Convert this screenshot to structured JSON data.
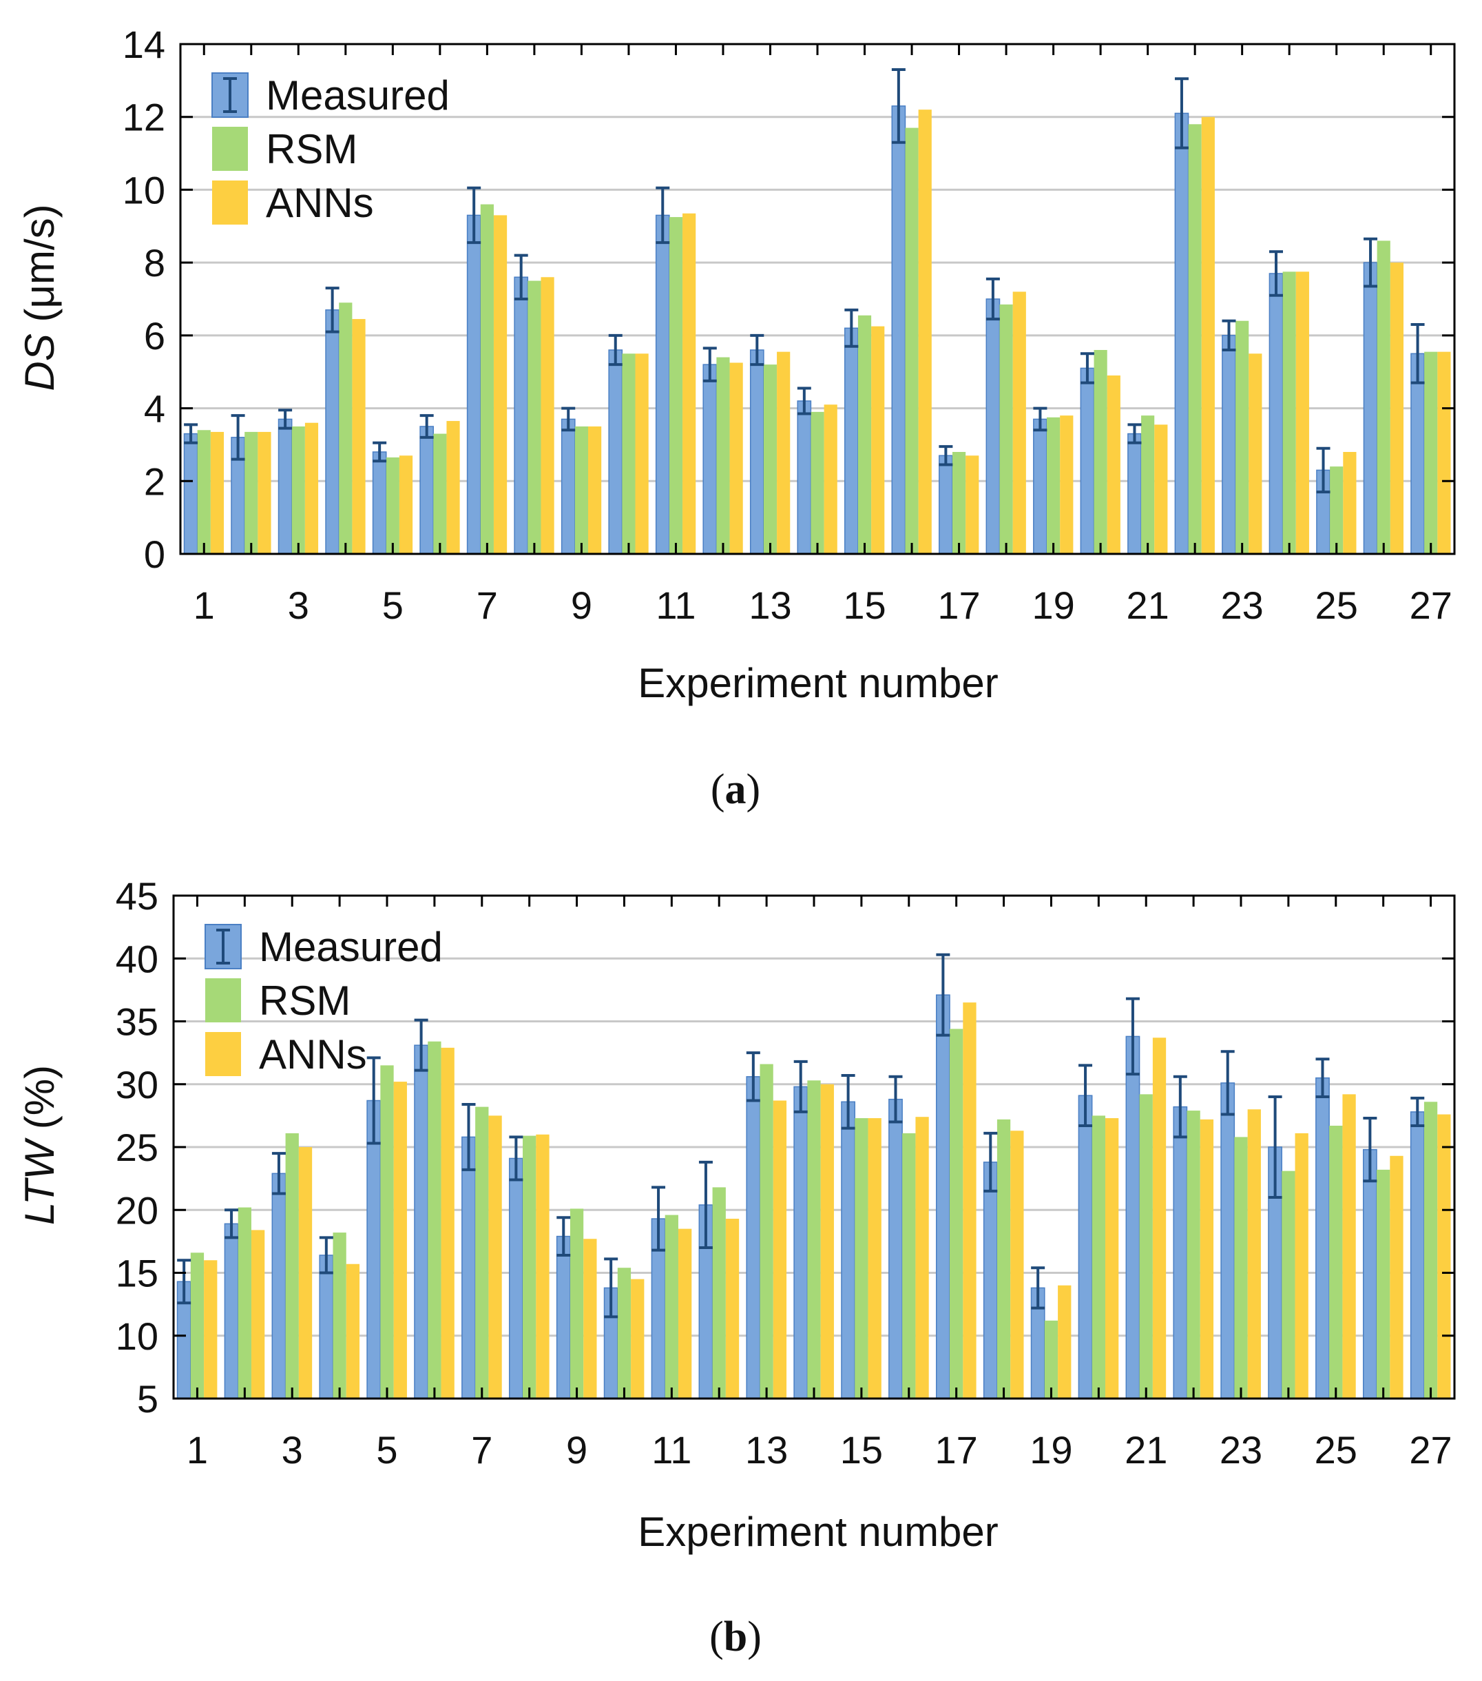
{
  "colors": {
    "measured_fill": "#7aa6dc",
    "measured_edge": "#4a7fc4",
    "rsm_fill": "#a6d977",
    "ann_fill": "#fdcf41",
    "error_bar": "#1f4a7a",
    "grid": "#c8c8c8",
    "axis": "#000000"
  },
  "chart_data": [
    {
      "type": "bar",
      "panel_label": "a",
      "title": "",
      "xlabel": "Experiment number",
      "ylabel_italic": "DS",
      "ylabel_rest": " (μm/s)",
      "ylim": [
        0,
        14
      ],
      "yticks": [
        0,
        2,
        4,
        6,
        8,
        10,
        12,
        14
      ],
      "xtick_labels": [
        "1",
        "3",
        "5",
        "7",
        "9",
        "11",
        "13",
        "15",
        "17",
        "19",
        "21",
        "23",
        "25",
        "27"
      ],
      "categories": [
        1,
        2,
        3,
        4,
        5,
        6,
        7,
        8,
        9,
        10,
        11,
        12,
        13,
        14,
        15,
        16,
        17,
        18,
        19,
        20,
        21,
        22,
        23,
        24,
        25,
        26,
        27
      ],
      "grid": true,
      "legend_position": "top-left",
      "series": [
        {
          "name": "Measured",
          "values": [
            3.3,
            3.2,
            3.7,
            6.7,
            2.8,
            3.5,
            9.3,
            7.6,
            3.7,
            5.6,
            9.3,
            5.2,
            5.6,
            4.2,
            6.2,
            12.3,
            2.7,
            7.0,
            3.7,
            5.1,
            3.3,
            12.1,
            6.0,
            7.7,
            2.3,
            8.0,
            5.5
          ],
          "error": [
            0.25,
            0.6,
            0.25,
            0.6,
            0.25,
            0.3,
            0.75,
            0.6,
            0.3,
            0.4,
            0.75,
            0.45,
            0.4,
            0.35,
            0.5,
            1.0,
            0.25,
            0.55,
            0.3,
            0.4,
            0.25,
            0.95,
            0.4,
            0.6,
            0.6,
            0.65,
            0.8
          ]
        },
        {
          "name": "RSM",
          "values": [
            3.4,
            3.35,
            3.5,
            6.9,
            2.65,
            3.3,
            9.6,
            7.5,
            3.5,
            5.5,
            9.25,
            5.4,
            5.2,
            3.9,
            6.55,
            11.7,
            2.8,
            6.85,
            3.75,
            5.6,
            3.8,
            11.8,
            6.4,
            7.75,
            2.4,
            8.6,
            5.55
          ]
        },
        {
          "name": "ANNs",
          "values": [
            3.35,
            3.35,
            3.6,
            6.45,
            2.7,
            3.65,
            9.3,
            7.6,
            3.5,
            5.5,
            9.35,
            5.25,
            5.55,
            4.1,
            6.25,
            12.2,
            2.7,
            7.2,
            3.8,
            4.9,
            3.55,
            12.0,
            5.5,
            7.75,
            2.8,
            8.0,
            5.55
          ]
        }
      ]
    },
    {
      "type": "bar",
      "panel_label": "b",
      "title": "",
      "xlabel": "Experiment number",
      "ylabel_italic": "LTW",
      "ylabel_rest": " (%)",
      "ylim": [
        5,
        45
      ],
      "yticks": [
        5,
        10,
        15,
        20,
        25,
        30,
        35,
        40,
        45
      ],
      "xtick_labels": [
        "1",
        "3",
        "5",
        "7",
        "9",
        "11",
        "13",
        "15",
        "17",
        "19",
        "21",
        "23",
        "25",
        "27"
      ],
      "categories": [
        1,
        2,
        3,
        4,
        5,
        6,
        7,
        8,
        9,
        10,
        11,
        12,
        13,
        14,
        15,
        16,
        17,
        18,
        19,
        20,
        21,
        22,
        23,
        24,
        25,
        26,
        27
      ],
      "grid": true,
      "legend_position": "top-left",
      "series": [
        {
          "name": "Measured",
          "values": [
            14.3,
            18.9,
            22.9,
            16.4,
            28.7,
            33.1,
            25.8,
            24.1,
            17.9,
            13.8,
            19.3,
            20.4,
            30.6,
            29.8,
            28.6,
            28.8,
            37.1,
            23.8,
            13.8,
            29.1,
            33.8,
            28.2,
            30.1,
            25.0,
            30.5,
            24.8,
            27.8
          ],
          "error": [
            1.7,
            1.1,
            1.6,
            1.4,
            3.4,
            2.0,
            2.6,
            1.7,
            1.5,
            2.3,
            2.5,
            3.4,
            1.9,
            2.0,
            2.1,
            1.8,
            3.2,
            2.3,
            1.6,
            2.4,
            3.0,
            2.4,
            2.5,
            4.0,
            1.5,
            2.5,
            1.1
          ]
        },
        {
          "name": "RSM",
          "values": [
            16.6,
            20.2,
            26.1,
            18.2,
            31.5,
            33.4,
            28.2,
            25.9,
            20.1,
            15.4,
            19.6,
            21.8,
            31.6,
            30.3,
            27.3,
            26.1,
            34.4,
            27.2,
            11.2,
            27.5,
            29.2,
            27.9,
            25.8,
            23.1,
            26.7,
            23.2,
            28.6
          ]
        },
        {
          "name": "ANNs",
          "values": [
            16.0,
            18.4,
            25.0,
            15.7,
            30.2,
            32.9,
            27.5,
            26.0,
            17.7,
            14.5,
            18.5,
            19.3,
            28.7,
            30.0,
            27.3,
            27.4,
            36.5,
            26.3,
            14.0,
            27.3,
            33.7,
            27.2,
            28.0,
            26.1,
            29.2,
            24.3,
            27.6
          ]
        }
      ]
    }
  ]
}
